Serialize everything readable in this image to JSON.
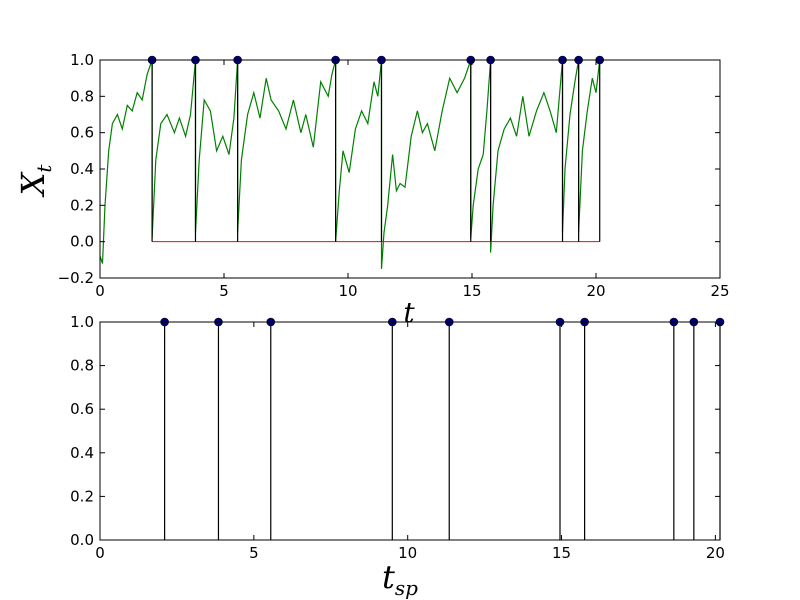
{
  "chart_data": [
    {
      "type": "line",
      "ylabel": "X",
      "ylabel_sub": "t",
      "xlabel": "t",
      "xlim": [
        0,
        25
      ],
      "ylim": [
        -0.2,
        1.0
      ],
      "xticks": [
        0,
        5,
        10,
        15,
        20,
        25
      ],
      "xtick_labels": [
        "0",
        "5",
        "10",
        "15",
        "20",
        "25"
      ],
      "yticks": [
        -0.2,
        0.0,
        0.2,
        0.4,
        0.6,
        0.8,
        1.0
      ],
      "ytick_labels": [
        "−0.2",
        "0.0",
        "0.2",
        "0.4",
        "0.6",
        "0.8",
        "1.0"
      ],
      "grid": false,
      "spike_times": [
        2.1,
        3.85,
        5.55,
        9.5,
        11.35,
        14.95,
        15.75,
        18.65,
        19.3,
        20.15
      ],
      "threshold": 1.0,
      "reset_level": 0.0,
      "reset_line_range": [
        2.1,
        20.15
      ],
      "series": [
        {
          "color": "#008000",
          "points": [
            [
              0.0,
              -0.08
            ],
            [
              0.1,
              -0.12
            ],
            [
              0.2,
              0.2
            ],
            [
              0.35,
              0.5
            ],
            [
              0.5,
              0.65
            ],
            [
              0.7,
              0.7
            ],
            [
              0.9,
              0.62
            ],
            [
              1.1,
              0.75
            ],
            [
              1.3,
              0.72
            ],
            [
              1.5,
              0.82
            ],
            [
              1.7,
              0.78
            ],
            [
              1.9,
              0.92
            ],
            [
              2.1,
              1.0
            ],
            [
              2.1,
              0.02
            ],
            [
              2.25,
              0.45
            ],
            [
              2.45,
              0.65
            ],
            [
              2.7,
              0.7
            ],
            [
              3.0,
              0.6
            ],
            [
              3.2,
              0.68
            ],
            [
              3.45,
              0.58
            ],
            [
              3.65,
              0.7
            ],
            [
              3.85,
              1.0
            ],
            [
              3.85,
              0.05
            ],
            [
              4.0,
              0.45
            ],
            [
              4.2,
              0.78
            ],
            [
              4.45,
              0.72
            ],
            [
              4.7,
              0.5
            ],
            [
              4.95,
              0.58
            ],
            [
              5.2,
              0.48
            ],
            [
              5.4,
              0.68
            ],
            [
              5.55,
              1.0
            ],
            [
              5.55,
              0.05
            ],
            [
              5.7,
              0.45
            ],
            [
              5.95,
              0.7
            ],
            [
              6.2,
              0.82
            ],
            [
              6.45,
              0.68
            ],
            [
              6.7,
              0.9
            ],
            [
              6.9,
              0.78
            ],
            [
              7.2,
              0.72
            ],
            [
              7.5,
              0.62
            ],
            [
              7.8,
              0.78
            ],
            [
              8.1,
              0.6
            ],
            [
              8.3,
              0.7
            ],
            [
              8.6,
              0.52
            ],
            [
              8.9,
              0.88
            ],
            [
              9.2,
              0.8
            ],
            [
              9.35,
              0.92
            ],
            [
              9.5,
              1.0
            ],
            [
              9.5,
              0.0
            ],
            [
              9.65,
              0.28
            ],
            [
              9.8,
              0.5
            ],
            [
              10.05,
              0.38
            ],
            [
              10.3,
              0.62
            ],
            [
              10.55,
              0.72
            ],
            [
              10.8,
              0.65
            ],
            [
              11.05,
              0.88
            ],
            [
              11.2,
              0.8
            ],
            [
              11.35,
              1.0
            ],
            [
              11.35,
              -0.15
            ],
            [
              11.45,
              0.05
            ],
            [
              11.6,
              0.2
            ],
            [
              11.8,
              0.48
            ],
            [
              11.95,
              0.28
            ],
            [
              12.1,
              0.32
            ],
            [
              12.3,
              0.3
            ],
            [
              12.55,
              0.58
            ],
            [
              12.8,
              0.72
            ],
            [
              13.0,
              0.6
            ],
            [
              13.2,
              0.65
            ],
            [
              13.5,
              0.5
            ],
            [
              13.8,
              0.72
            ],
            [
              14.1,
              0.9
            ],
            [
              14.4,
              0.82
            ],
            [
              14.7,
              0.9
            ],
            [
              14.95,
              1.0
            ],
            [
              14.95,
              0.02
            ],
            [
              15.05,
              0.2
            ],
            [
              15.25,
              0.4
            ],
            [
              15.45,
              0.48
            ],
            [
              15.6,
              0.72
            ],
            [
              15.75,
              1.0
            ],
            [
              15.75,
              -0.06
            ],
            [
              15.85,
              0.2
            ],
            [
              16.05,
              0.5
            ],
            [
              16.3,
              0.62
            ],
            [
              16.55,
              0.68
            ],
            [
              16.8,
              0.58
            ],
            [
              17.05,
              0.8
            ],
            [
              17.3,
              0.58
            ],
            [
              17.6,
              0.72
            ],
            [
              17.9,
              0.82
            ],
            [
              18.15,
              0.72
            ],
            [
              18.4,
              0.6
            ],
            [
              18.65,
              1.0
            ],
            [
              18.65,
              0.05
            ],
            [
              18.75,
              0.4
            ],
            [
              18.95,
              0.7
            ],
            [
              19.15,
              0.88
            ],
            [
              19.3,
              1.0
            ],
            [
              19.3,
              0.05
            ],
            [
              19.45,
              0.5
            ],
            [
              19.65,
              0.72
            ],
            [
              19.85,
              0.9
            ],
            [
              20.0,
              0.82
            ],
            [
              20.15,
              1.0
            ]
          ]
        }
      ]
    },
    {
      "type": "spike_raster",
      "xlabel": "t",
      "xlabel_sub": "sp",
      "xlim": [
        0,
        20.15
      ],
      "ylim": [
        0.0,
        1.0
      ],
      "xticks": [
        0,
        5,
        10,
        15,
        20
      ],
      "xtick_labels": [
        "0",
        "5",
        "10",
        "15",
        "20"
      ],
      "yticks": [
        0.0,
        0.2,
        0.4,
        0.6,
        0.8,
        1.0
      ],
      "ytick_labels": [
        "0.0",
        "0.2",
        "0.4",
        "0.6",
        "0.8",
        "1.0"
      ],
      "grid": false,
      "spike_times": [
        2.1,
        3.85,
        5.55,
        9.5,
        11.35,
        14.95,
        15.75,
        18.65,
        19.3,
        20.15
      ],
      "spike_height": 1.0
    }
  ],
  "colors": {
    "trace": "#008000",
    "reset_line": "#ff0000",
    "spike_line": "#000000",
    "marker": "#00007f"
  }
}
